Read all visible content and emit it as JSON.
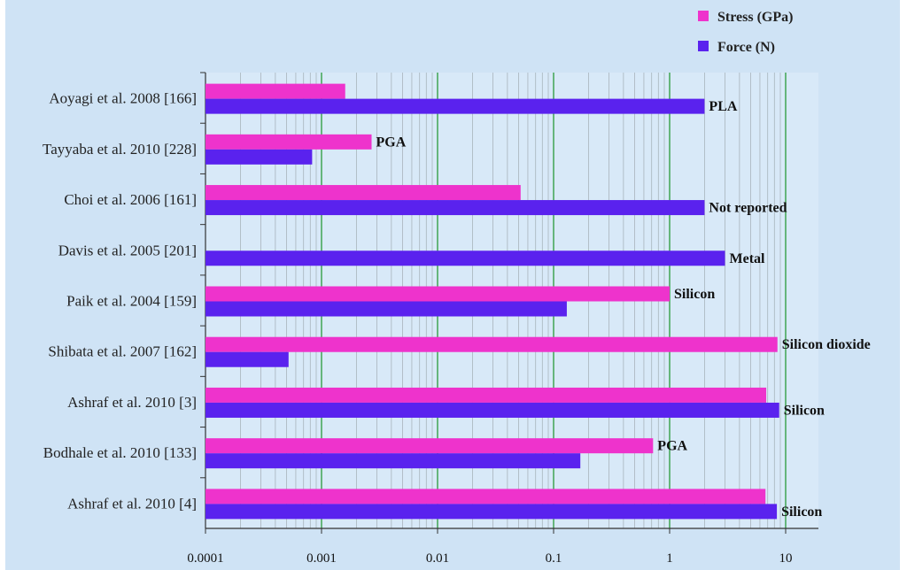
{
  "chart_data": {
    "type": "bar",
    "orientation": "horizontal",
    "x_scale": "log",
    "xlim": [
      0.0001,
      20
    ],
    "x_ticks": [
      "0.0001",
      "0.001",
      "0.01",
      "0.1",
      "1",
      "10"
    ],
    "categories": [
      "Aoyagi et al. 2008 [166]",
      "Tayyaba et al. 2010 [228]",
      "Choi et al. 2006 [161]",
      "Davis et al. 2005 [201]",
      "Paik et al. 2004 [159]",
      "Shibata et al. 2007 [162]",
      "Ashraf et al. 2010 [3]",
      "Bodhale et al. 2010 [133]",
      "Ashraf et al. 2010 [4]"
    ],
    "series": [
      {
        "name": "Stress (GPa)",
        "color": "#ee33cc",
        "values": [
          0.0016,
          0.0027,
          0.052,
          null,
          1.0,
          8.5,
          6.8,
          0.72,
          6.7
        ]
      },
      {
        "name": "Force (N)",
        "color": "#5a22ee",
        "values": [
          2.0,
          0.00083,
          2.0,
          3.0,
          0.13,
          0.00052,
          8.8,
          0.17,
          8.4
        ]
      }
    ],
    "annotations": [
      {
        "category_index": 0,
        "series": "Force (N)",
        "text": "PLA"
      },
      {
        "category_index": 1,
        "series": "Stress (GPa)",
        "text": "PGA"
      },
      {
        "category_index": 2,
        "series": "Force (N)",
        "text": "Not reported"
      },
      {
        "category_index": 3,
        "series": "Force (N)",
        "text": "Metal"
      },
      {
        "category_index": 4,
        "series": "Stress (GPa)",
        "text": "Silicon"
      },
      {
        "category_index": 5,
        "series": "Stress (GPa)",
        "text": "Silicon dioxide"
      },
      {
        "category_index": 6,
        "series": "Force (N)",
        "text": "Silicon"
      },
      {
        "category_index": 7,
        "series": "Stress (GPa)",
        "text": "PGA"
      },
      {
        "category_index": 8,
        "series": "Force (N)",
        "text": "Silicon"
      }
    ],
    "legend": {
      "position": "top-right"
    },
    "grid": true,
    "background_color": "#cfe3f5",
    "plot_background_color": "#d8e9f8"
  }
}
